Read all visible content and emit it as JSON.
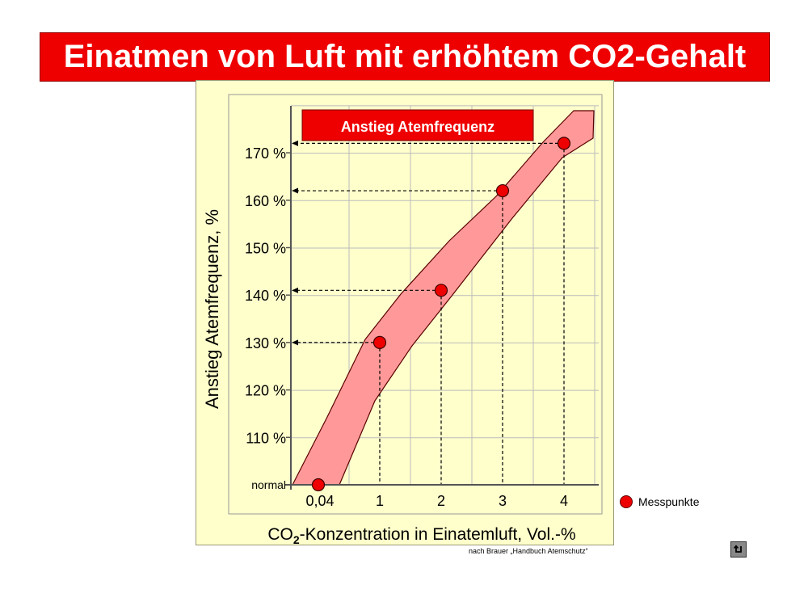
{
  "page": {
    "title": "Einatmen von Luft mit erhöhtem CO2-Gehalt",
    "source_note": "nach Brauer „Handbuch Atemschutz“",
    "colors": {
      "title_bg": "#ee0000",
      "panel_bg": "#ffffcc",
      "band_fill": "#ff9999",
      "point_fill": "#ee0000"
    },
    "back_icon": "return-arrow-icon"
  },
  "chart_data": {
    "type": "scatter",
    "title": "Anstieg Atemfrequenz",
    "xlabel_parts": [
      "CO",
      "2",
      "-Konzentration in Einatemluft, Vol.-%"
    ],
    "ylabel": "Anstieg Atemfrequenz, %",
    "x_tick_labels": [
      "0,04",
      "1",
      "2",
      "3",
      "4"
    ],
    "y_tick_labels": [
      "normal",
      "110 %",
      "120 %",
      "130 %",
      "140 %",
      "150 %",
      "160 %",
      "170 %"
    ],
    "xlim": [
      -0.5,
      4.5
    ],
    "ylim": [
      98,
      180
    ],
    "grid": true,
    "legend": {
      "label": "Messpunkte",
      "position": "right"
    },
    "series": [
      {
        "name": "Messpunkte",
        "points": [
          {
            "x": 0.04,
            "y": 100
          },
          {
            "x": 1,
            "y": 130
          },
          {
            "x": 2,
            "y": 141
          },
          {
            "x": 3,
            "y": 162
          },
          {
            "x": 4,
            "y": 172
          }
        ]
      }
    ],
    "annotations": [
      {
        "y": 130,
        "x_from": 1
      },
      {
        "y": 141,
        "x_from": 2
      },
      {
        "y": 162,
        "x_from": 3
      },
      {
        "y": 172,
        "x_from": 4
      }
    ]
  }
}
